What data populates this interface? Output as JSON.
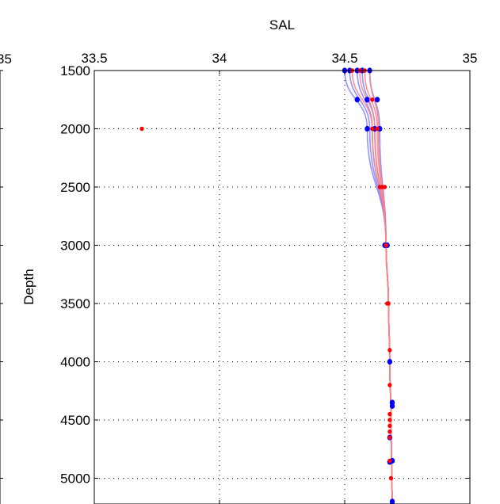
{
  "chart_data": {
    "type": "line",
    "title": "SAL",
    "xlabel": "",
    "ylabel": "Depth",
    "xlim": [
      33.5,
      35
    ],
    "ylim": [
      1500,
      5200
    ],
    "y_reversed": true,
    "x_axis_position": "top",
    "x_ticks": [
      "33.5",
      "34",
      "34.5",
      "35"
    ],
    "y_ticks": [
      "1500",
      "2000",
      "2500",
      "3000",
      "3500",
      "4000",
      "4500",
      "5000"
    ],
    "grid": true,
    "left_panel_partial_tick": "35",
    "colors": {
      "blue": "#0000ff",
      "red": "#ff0000",
      "blue_line": "#8080ff",
      "red_line": "#ff8080"
    },
    "series": [
      {
        "color": "blue",
        "points": [
          {
            "x": 34.5,
            "y": 1500
          },
          {
            "x": 34.52,
            "y": 1500
          },
          {
            "x": 34.55,
            "y": 1500
          },
          {
            "x": 34.57,
            "y": 1500
          },
          {
            "x": 34.6,
            "y": 1500
          },
          {
            "x": 34.55,
            "y": 1750
          },
          {
            "x": 34.59,
            "y": 1750
          },
          {
            "x": 34.63,
            "y": 1750
          },
          {
            "x": 34.59,
            "y": 2000
          },
          {
            "x": 34.62,
            "y": 2000
          },
          {
            "x": 34.64,
            "y": 2000
          },
          {
            "x": 34.66,
            "y": 3000
          },
          {
            "x": 34.67,
            "y": 3000
          },
          {
            "x": 34.68,
            "y": 4000
          },
          {
            "x": 34.69,
            "y": 4350
          },
          {
            "x": 34.69,
            "y": 4380
          },
          {
            "x": 34.68,
            "y": 4650
          },
          {
            "x": 34.69,
            "y": 4850
          },
          {
            "x": 34.68,
            "y": 4860
          },
          {
            "x": 34.69,
            "y": 5200
          }
        ]
      },
      {
        "color": "red",
        "points": [
          {
            "x": 34.53,
            "y": 1500
          },
          {
            "x": 34.56,
            "y": 1500
          },
          {
            "x": 34.58,
            "y": 1500
          },
          {
            "x": 34.61,
            "y": 1750
          },
          {
            "x": 33.69,
            "y": 2000
          },
          {
            "x": 34.61,
            "y": 2000
          },
          {
            "x": 34.63,
            "y": 2000
          },
          {
            "x": 34.64,
            "y": 2500
          },
          {
            "x": 34.65,
            "y": 2500
          },
          {
            "x": 34.66,
            "y": 2500
          },
          {
            "x": 34.665,
            "y": 3000
          },
          {
            "x": 34.67,
            "y": 3500
          },
          {
            "x": 34.675,
            "y": 3500
          },
          {
            "x": 34.68,
            "y": 3900
          },
          {
            "x": 34.68,
            "y": 4200
          },
          {
            "x": 34.68,
            "y": 4450
          },
          {
            "x": 34.68,
            "y": 4500
          },
          {
            "x": 34.68,
            "y": 4550
          },
          {
            "x": 34.68,
            "y": 4600
          },
          {
            "x": 34.68,
            "y": 4650
          },
          {
            "x": 34.68,
            "y": 4850
          },
          {
            "x": 34.685,
            "y": 5000
          }
        ]
      }
    ],
    "profiles": [
      {
        "color": "blue",
        "start": [
          34.5,
          1500
        ],
        "mid": [
          34.59,
          2000
        ]
      },
      {
        "color": "blue",
        "start": [
          34.52,
          1500
        ],
        "mid": [
          34.6,
          2000
        ]
      },
      {
        "color": "blue",
        "start": [
          34.55,
          1500
        ],
        "mid": [
          34.61,
          2000
        ]
      },
      {
        "color": "blue",
        "start": [
          34.57,
          1500
        ],
        "mid": [
          34.62,
          2000
        ]
      },
      {
        "color": "blue",
        "start": [
          34.6,
          1500
        ],
        "mid": [
          34.64,
          2000
        ]
      },
      {
        "color": "red",
        "start": [
          34.53,
          1500
        ],
        "mid": [
          34.61,
          2000
        ]
      },
      {
        "color": "red",
        "start": [
          34.56,
          1500
        ],
        "mid": [
          34.62,
          2000
        ]
      },
      {
        "color": "red",
        "start": [
          34.58,
          1500
        ],
        "mid": [
          34.63,
          2000
        ]
      },
      {
        "color": "red",
        "start": [
          34.6,
          1500
        ],
        "mid": [
          34.635,
          2000
        ]
      }
    ]
  }
}
